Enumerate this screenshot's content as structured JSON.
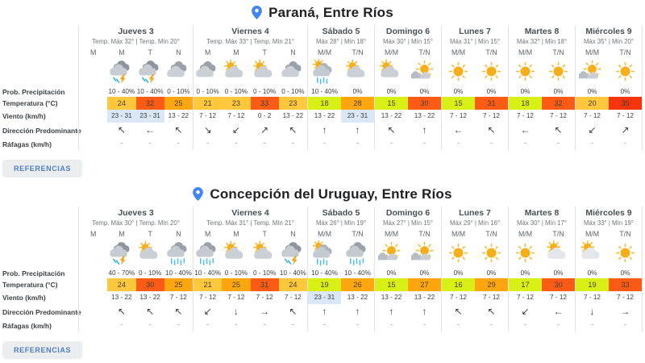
{
  "row_labels": [
    "Prob. Precipitación",
    "Temperatura (°C)",
    "Viento (km/h)",
    "Dirección Predominante",
    "Ráfagas (km/h)"
  ],
  "colors": {
    "pin": "#4285F4",
    "grid_line": "#E2E3E5",
    "wind_highlight": "#D9E7F6",
    "button_bg": "#ECEDEF",
    "button_text": "#4E7FC4",
    "temp_scale": {
      "t1": "#D9F016",
      "t2": "#FFC83C",
      "t3": "#FFA60E",
      "t4": "#FB5B14",
      "t5": "#F4340B"
    }
  },
  "locations": [
    {
      "title": "Paraná, Entre Ríos",
      "references_label": "REFERENCIAS",
      "days": [
        {
          "name": "Jueves 3",
          "subtitle": "Temp. Máx 32° | Temp. Mín 20°",
          "periods": [
            {
              "label": "M",
              "empty": true
            },
            {
              "label": "M",
              "icon": "storm",
              "precip": "10 - 40%",
              "temp": "24",
              "wind": "23 - 31",
              "wind_hl": true,
              "dir": "↖",
              "gust": "-"
            },
            {
              "label": "T",
              "icon": "storm",
              "precip": "10 - 40%",
              "temp": "32",
              "wind": "23 - 31",
              "wind_hl": true,
              "dir": "←",
              "gust": "-"
            },
            {
              "label": "N",
              "icon": "cloudy",
              "precip": "0 - 10%",
              "temp": "25",
              "wind": "13 - 22",
              "dir": "↖",
              "gust": "-"
            }
          ]
        },
        {
          "name": "Viernes 4",
          "subtitle": "Temp. Máx 33° | Temp. Mín 21°",
          "periods": [
            {
              "label": "M",
              "icon": "cloudy",
              "precip": "0 - 10%",
              "temp": "21",
              "wind": "7 - 12",
              "dir": "↘",
              "gust": "-"
            },
            {
              "label": "M",
              "icon": "cloud-sun",
              "precip": "0 - 10%",
              "temp": "23",
              "wind": "7 - 12",
              "dir": "↙",
              "gust": "-"
            },
            {
              "label": "T",
              "icon": "cloud-sun",
              "precip": "0 - 10%",
              "temp": "33",
              "wind": "0 - 2",
              "dir": "↗",
              "gust": "-"
            },
            {
              "label": "N",
              "icon": "cloudy",
              "precip": "0 - 10%",
              "temp": "23",
              "wind": "13 - 22",
              "dir": "↖",
              "gust": "-"
            }
          ]
        },
        {
          "name": "Sábado 5",
          "subtitle": "Máx 28° | Mín 18°",
          "periods": [
            {
              "label": "M/M",
              "icon": "rain-sun",
              "precip": "10 - 40%",
              "temp": "18",
              "wind": "13 - 22",
              "dir": "↑",
              "gust": "-"
            },
            {
              "label": "T/N",
              "icon": "cloud-sun",
              "precip": "0%",
              "temp": "28",
              "wind": "23 - 31",
              "wind_hl": true,
              "dir": "↑",
              "gust": "-"
            }
          ]
        },
        {
          "name": "Domingo 6",
          "subtitle": "Máx 30° | Mín 15°",
          "periods": [
            {
              "label": "M/M",
              "icon": "cloud-sun",
              "precip": "0%",
              "temp": "15",
              "wind": "13 - 22",
              "dir": "↖",
              "gust": "-"
            },
            {
              "label": "T/N",
              "icon": "sun-cloud",
              "precip": "0%",
              "temp": "30",
              "wind": "13 - 22",
              "dir": "↑",
              "gust": "-"
            }
          ]
        },
        {
          "name": "Lunes 7",
          "subtitle": "Máx 31° | Mín 15°",
          "periods": [
            {
              "label": "M/M",
              "icon": "sun",
              "precip": "0%",
              "temp": "15",
              "wind": "7 - 12",
              "dir": "←",
              "gust": "-"
            },
            {
              "label": "T/N",
              "icon": "sun",
              "precip": "0%",
              "temp": "31",
              "wind": "7 - 12",
              "dir": "↖",
              "gust": "-"
            }
          ]
        },
        {
          "name": "Martes 8",
          "subtitle": "Máx 32° | Mín 18°",
          "periods": [
            {
              "label": "M/M",
              "icon": "sun",
              "precip": "0%",
              "temp": "18",
              "wind": "7 - 12",
              "dir": "←",
              "gust": "-"
            },
            {
              "label": "T/N",
              "icon": "sun",
              "precip": "0%",
              "temp": "32",
              "wind": "7 - 12",
              "dir": "↖",
              "gust": "-"
            }
          ]
        },
        {
          "name": "Miércoles 9",
          "subtitle": "Máx 35° | Mín 20°",
          "periods": [
            {
              "label": "M/M",
              "icon": "sun-cloud",
              "precip": "0%",
              "temp": "20",
              "wind": "7 - 12",
              "dir": "↙",
              "gust": "-"
            },
            {
              "label": "T/N",
              "icon": "sun",
              "precip": "0%",
              "temp": "35",
              "wind": "7 - 12",
              "dir": "↗",
              "gust": "-"
            }
          ]
        }
      ]
    },
    {
      "title": "Concepción del Uruguay, Entre Ríos",
      "references_label": "REFERENCIAS",
      "days": [
        {
          "name": "Jueves 3",
          "subtitle": "Temp. Máx 30° | Temp. Mín 20°",
          "periods": [
            {
              "label": "M",
              "empty": true
            },
            {
              "label": "M",
              "icon": "storm",
              "precip": "40 - 70%",
              "temp": "24",
              "wind": "13 - 22",
              "dir": "↖",
              "gust": "-"
            },
            {
              "label": "T",
              "icon": "cloud-sun",
              "precip": "0 - 10%",
              "temp": "30",
              "wind": "13 - 22",
              "dir": "↖",
              "gust": "-"
            },
            {
              "label": "N",
              "icon": "rain",
              "precip": "10 - 40%",
              "temp": "25",
              "wind": "7 - 12",
              "dir": "↖",
              "gust": "-"
            }
          ]
        },
        {
          "name": "Viernes 4",
          "subtitle": "Temp. Máx 31° | Temp. Mín 21°",
          "periods": [
            {
              "label": "M",
              "icon": "rain",
              "precip": "10 - 40%",
              "temp": "21",
              "wind": "7 - 12",
              "dir": "↙",
              "gust": "-"
            },
            {
              "label": "M",
              "icon": "cloud-sun",
              "precip": "0 - 10%",
              "temp": "25",
              "wind": "7 - 12",
              "dir": "↓",
              "gust": "-"
            },
            {
              "label": "T",
              "icon": "cloud-sun",
              "precip": "0 - 10%",
              "temp": "31",
              "wind": "7 - 12",
              "dir": "→",
              "gust": "-"
            },
            {
              "label": "N",
              "icon": "storm",
              "precip": "10 - 40%",
              "temp": "24",
              "wind": "7 - 12",
              "dir": "↖",
              "gust": "-"
            }
          ]
        },
        {
          "name": "Sábado 5",
          "subtitle": "Máx 26° | Mín 19°",
          "periods": [
            {
              "label": "M/M",
              "icon": "rain-sun",
              "precip": "10 - 40%",
              "temp": "19",
              "wind": "23 - 31",
              "wind_hl": true,
              "dir": "↑",
              "gust": "-"
            },
            {
              "label": "T/N",
              "icon": "rain",
              "precip": "10 - 40%",
              "temp": "26",
              "wind": "13 - 22",
              "dir": "↑",
              "gust": "-"
            }
          ]
        },
        {
          "name": "Domingo 6",
          "subtitle": "Máx 27° | Mín 15°",
          "periods": [
            {
              "label": "M/M",
              "icon": "sun-cloud",
              "precip": "0%",
              "temp": "15",
              "wind": "13 - 22",
              "dir": "↑",
              "gust": "-"
            },
            {
              "label": "T/N",
              "icon": "sun-cloud",
              "precip": "0%",
              "temp": "27",
              "wind": "13 - 22",
              "dir": "↑",
              "gust": "-"
            }
          ]
        },
        {
          "name": "Lunes 7",
          "subtitle": "Máx 29° | Mín 16°",
          "periods": [
            {
              "label": "M/M",
              "icon": "sun",
              "precip": "0%",
              "temp": "16",
              "wind": "7 - 12",
              "dir": "↖",
              "gust": "-"
            },
            {
              "label": "T/N",
              "icon": "sun",
              "precip": "0%",
              "temp": "29",
              "wind": "7 - 12",
              "dir": "↖",
              "gust": "-"
            }
          ]
        },
        {
          "name": "Martes 8",
          "subtitle": "Máx 30° | Mín 17°",
          "periods": [
            {
              "label": "M/M",
              "icon": "sun",
              "precip": "0%",
              "temp": "17",
              "wind": "7 - 12",
              "dir": "↙",
              "gust": "-"
            },
            {
              "label": "T/N",
              "icon": "sun-behind-cloud",
              "precip": "0%",
              "temp": "30",
              "wind": "7 - 12",
              "dir": "←",
              "gust": "-"
            }
          ]
        },
        {
          "name": "Miércoles 9",
          "subtitle": "Máx 33° | Mín 19°",
          "periods": [
            {
              "label": "M/M",
              "icon": "sun-behind-cloud",
              "precip": "0%",
              "temp": "19",
              "wind": "7 - 12",
              "dir": "↓",
              "gust": "-"
            },
            {
              "label": "T/N",
              "icon": "sun",
              "precip": "0%",
              "temp": "33",
              "wind": "7 - 12",
              "dir": "→",
              "gust": "-"
            }
          ]
        }
      ]
    }
  ]
}
